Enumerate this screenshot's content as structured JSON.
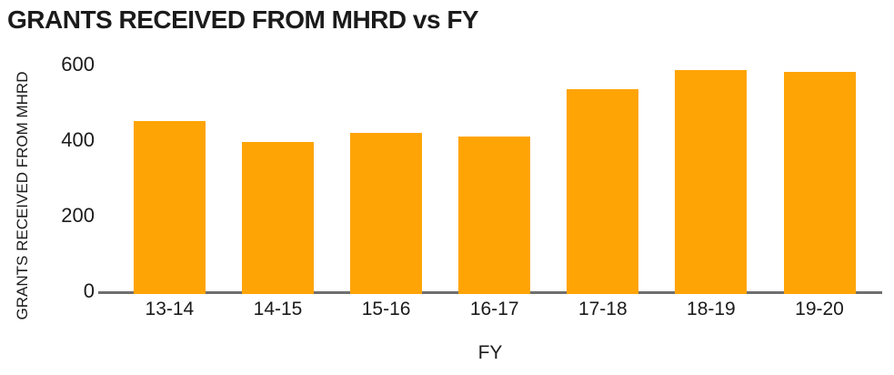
{
  "chart_data": {
    "type": "bar",
    "title": "GRANTS RECEIVED FROM MHRD vs FY",
    "xlabel": "FY",
    "ylabel": "GRANTS RECEIVED FROM MHRD",
    "categories": [
      "13-14",
      "14-15",
      "15-16",
      "16-17",
      "17-18",
      "18-19",
      "19-20"
    ],
    "values": [
      450,
      395,
      420,
      410,
      535,
      585,
      580
    ],
    "ylim": [
      0,
      600
    ],
    "yticks": [
      0,
      200,
      400,
      600
    ],
    "grid": "off",
    "legend": "none",
    "colors": {
      "bar": "#FFA405",
      "axis_line": "#6F6F6F",
      "text": "#1B1B1B",
      "background": "#FFFFFF"
    }
  }
}
